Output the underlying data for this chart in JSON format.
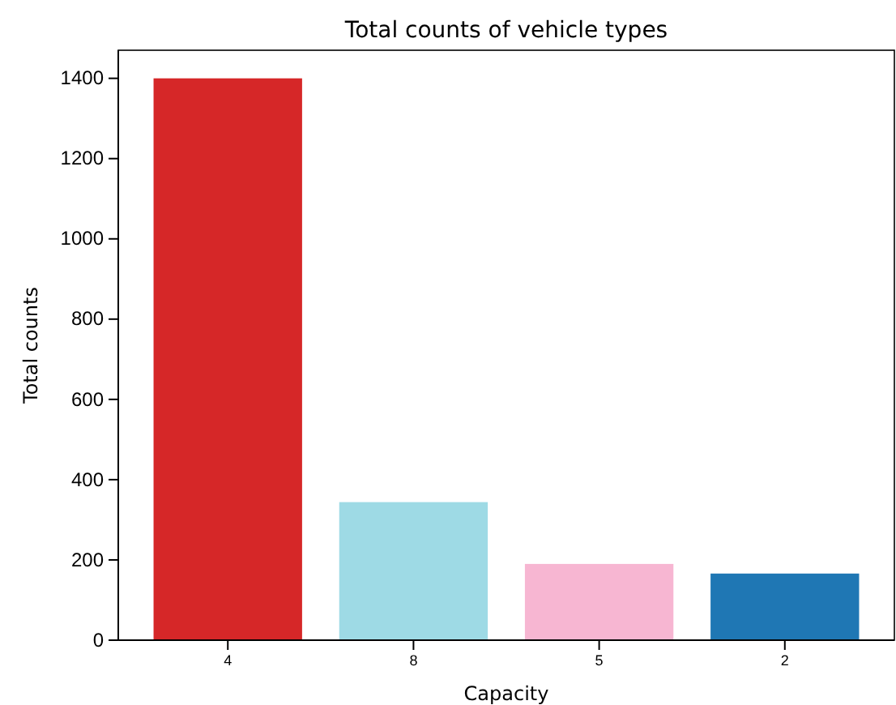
{
  "chart_data": {
    "type": "bar",
    "title": "Total counts of vehicle types",
    "xlabel": "Capacity",
    "ylabel": "Total counts",
    "categories": [
      "4",
      "8",
      "5",
      "2"
    ],
    "values": [
      1400,
      344,
      190,
      166
    ],
    "colors": [
      "#d62728",
      "#9edae5",
      "#f7b6d2",
      "#1f77b4"
    ],
    "ylim": [
      0,
      1470
    ],
    "yticks": [
      0,
      200,
      400,
      600,
      800,
      1000,
      1200,
      1400
    ]
  }
}
